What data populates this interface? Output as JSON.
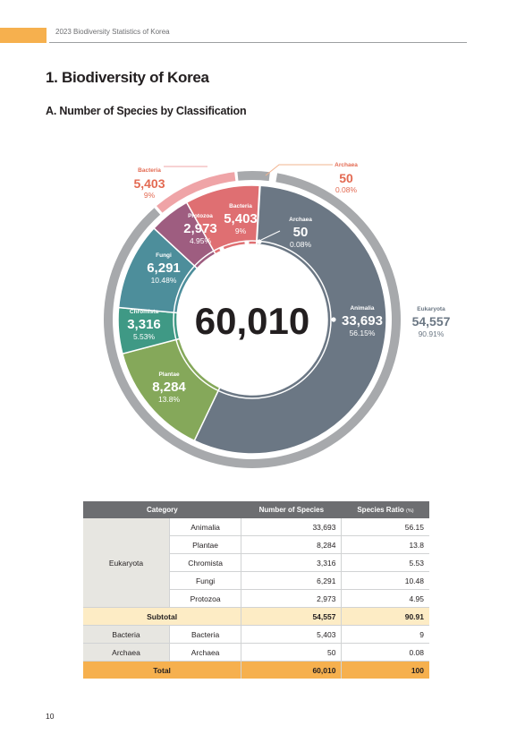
{
  "header": {
    "title": "2023 Biodiversity Statistics of Korea"
  },
  "heading1": "1. Biodiversity of Korea",
  "heading2": "A. Number of Species by Classification",
  "chart_data": {
    "type": "pie",
    "center_total": "60,010",
    "inner_ring": [
      {
        "name": "Animalia",
        "value": 33693,
        "value_label": "33,693",
        "pct_label": "56.15%",
        "color": "#6b7784"
      },
      {
        "name": "Plantae",
        "value": 8284,
        "value_label": "8,284",
        "pct_label": "13.8%",
        "color": "#85a85a"
      },
      {
        "name": "Chromista",
        "value": 3316,
        "value_label": "3,316",
        "pct_label": "5.53%",
        "color": "#3f9985"
      },
      {
        "name": "Fungi",
        "value": 6291,
        "value_label": "6,291",
        "pct_label": "10.48%",
        "color": "#4d8e9b"
      },
      {
        "name": "Protozoa",
        "value": 2973,
        "value_label": "2,973",
        "pct_label": "4.95%",
        "color": "#9e5d80"
      },
      {
        "name": "Bacteria",
        "value": 5403,
        "value_label": "5,403",
        "pct_label": "9%",
        "color": "#df6f72"
      },
      {
        "name": "Archaea",
        "value": 50,
        "value_label": "50",
        "pct_label": "0.08%",
        "color": "#4e5a66"
      }
    ],
    "outer_ring": [
      {
        "name": "Eukaryota",
        "value": 54557,
        "value_label": "54,557",
        "pct_label": "90.91%",
        "color": "#a7a9ac"
      },
      {
        "name": "Bacteria",
        "value": 5403,
        "value_label": "5,403",
        "pct_label": "9%",
        "color": "#efa4a7"
      },
      {
        "name": "Archaea",
        "value": 50,
        "value_label": "50",
        "pct_label": "0.08%",
        "color": "#a7a9ac"
      }
    ],
    "outer_label_color": "#e36a52"
  },
  "table": {
    "headers": {
      "category": "Category",
      "number": "Number of Species",
      "ratio": "Species Ratio",
      "ratio_unit": "(%)"
    },
    "eukaryota_label": "Eukaryota",
    "eukaryota_rows": [
      {
        "name": "Animalia",
        "number": "33,693",
        "ratio": "56.15"
      },
      {
        "name": "Plantae",
        "number": "8,284",
        "ratio": "13.8"
      },
      {
        "name": "Chromista",
        "number": "3,316",
        "ratio": "5.53"
      },
      {
        "name": "Fungi",
        "number": "6,291",
        "ratio": "10.48"
      },
      {
        "name": "Protozoa",
        "number": "2,973",
        "ratio": "4.95"
      }
    ],
    "subtotal": {
      "label": "Subtotal",
      "number": "54,557",
      "ratio": "90.91"
    },
    "bacteria": {
      "category": "Bacteria",
      "name": "Bacteria",
      "number": "5,403",
      "ratio": "9"
    },
    "archaea": {
      "category": "Archaea",
      "name": "Archaea",
      "number": "50",
      "ratio": "0.08"
    },
    "total": {
      "label": "Total",
      "number": "60,010",
      "ratio": "100"
    }
  },
  "page_number": "10"
}
